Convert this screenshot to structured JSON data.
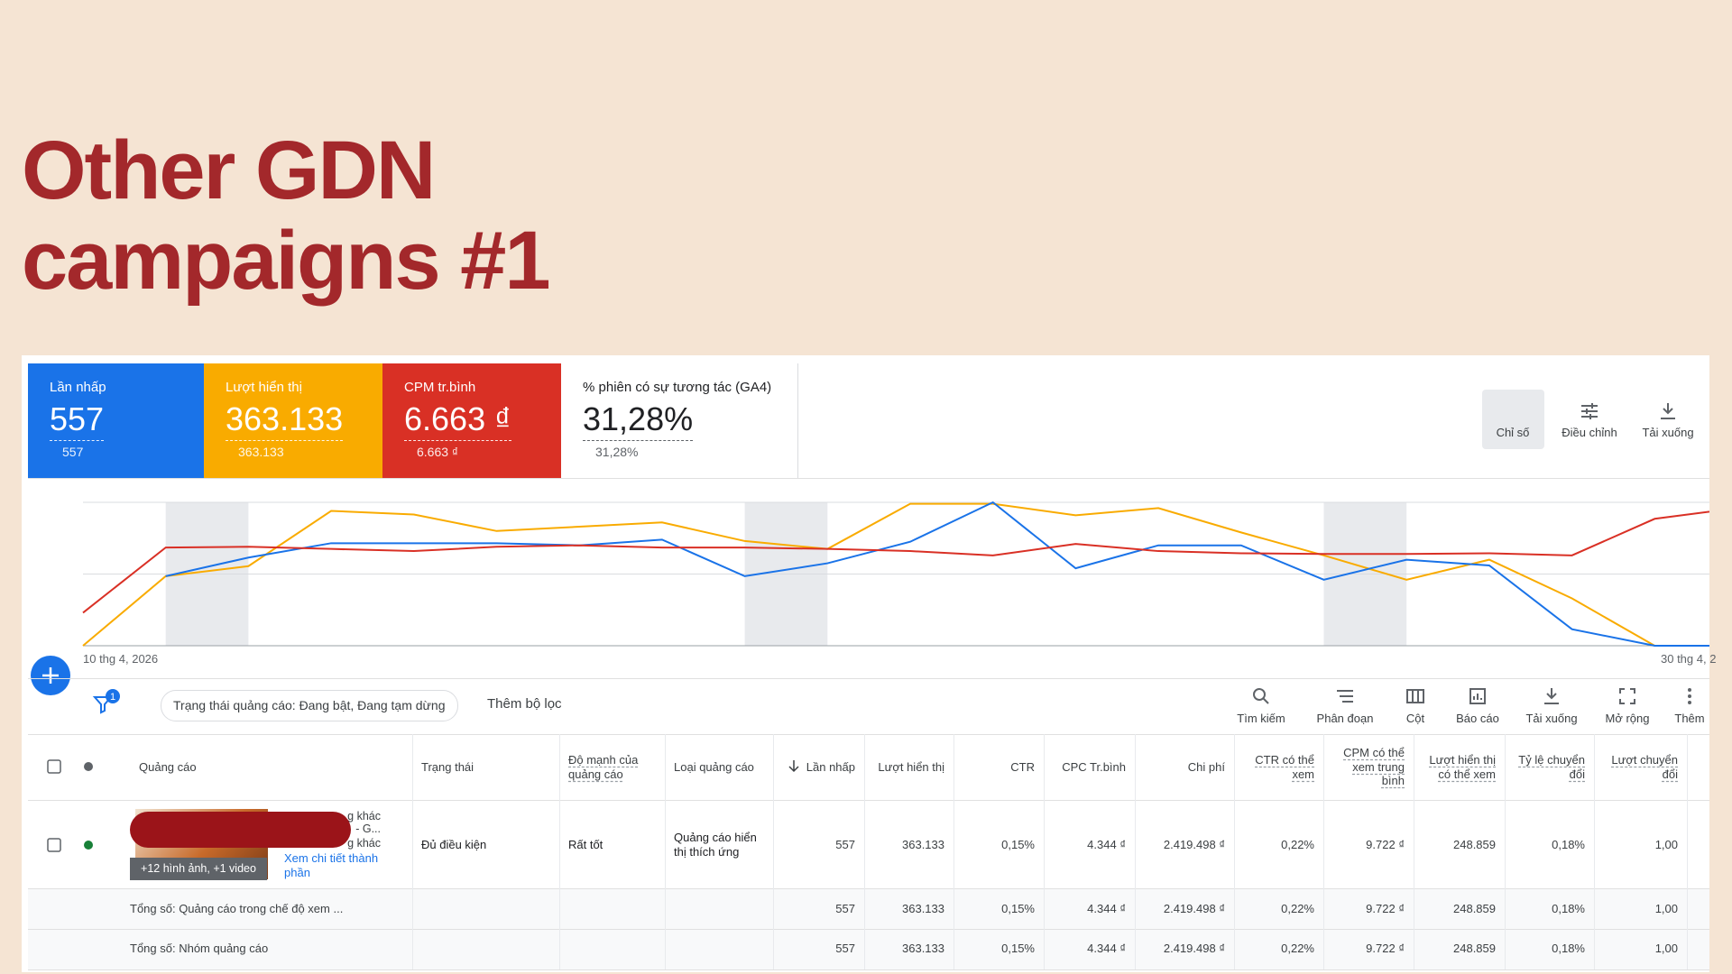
{
  "slide": {
    "title_lines": [
      "Other GDN",
      "campaigns #1"
    ]
  },
  "metrics": [
    {
      "label": "Lần nhấp",
      "value": "557",
      "change": "557",
      "color": "#1a73e8"
    },
    {
      "label": "Lượt hiển thị",
      "value": "363.133",
      "change": "363.133",
      "color": "#f9ab00"
    },
    {
      "label": "CPM tr.bình",
      "value": "6.663 ₫",
      "change": "6.663 ₫",
      "color": "#d93025"
    },
    {
      "label": "% phiên có sự tương tác (GA4)",
      "value": "31,28%",
      "change": "31,28%",
      "color": "#ffffff"
    }
  ],
  "top_tools": [
    "Chỉ số",
    "Điều chỉnh",
    "Tải xuống"
  ],
  "chart_data": {
    "type": "line",
    "x_labels": [
      "10 thg 4, 2026",
      "30 thg 4, 2"
    ],
    "ylim": [
      0,
      2
    ],
    "yticks": [
      0,
      1,
      2
    ],
    "grid": true,
    "series": [
      {
        "color": "#f9ab00",
        "values": [
          0,
          0.97,
          1.11,
          1.88,
          1.83,
          1.6,
          1.66,
          1.72,
          1.46,
          1.35,
          1.98,
          1.98,
          1.82,
          1.92,
          1.58,
          1.26,
          0.92,
          1.2,
          0.66,
          0,
          0
        ]
      },
      {
        "color": "#1a73e8",
        "values": [
          null,
          0.97,
          1.23,
          1.43,
          1.43,
          1.43,
          1.4,
          1.48,
          0.97,
          1.15,
          1.45,
          2.0,
          1.08,
          1.4,
          1.4,
          0.92,
          1.2,
          1.12,
          0.23,
          0,
          0
        ]
      },
      {
        "color": "#d93025",
        "values": [
          0.46,
          1.37,
          1.38,
          1.35,
          1.32,
          1.38,
          1.4,
          1.37,
          1.37,
          1.35,
          1.32,
          1.26,
          1.42,
          1.32,
          1.29,
          1.28,
          1.28,
          1.29,
          1.26,
          1.77,
          1.92
        ]
      }
    ]
  },
  "filter": {
    "badge": "1",
    "chip": "Trạng thái quảng cáo: Đang bật, Đang tạm dừng",
    "add_filter": "Thêm bộ lọc"
  },
  "toolbar": [
    "Tìm kiếm",
    "Phân đoạn",
    "Cột",
    "Báo cáo",
    "Tải xuống",
    "Mở rộng",
    "Thêm"
  ],
  "table": {
    "columns": [
      "Quảng cáo",
      "Trạng thái",
      "Độ mạnh của quảng cáo",
      "Loại quảng cáo",
      "Lần nhấp",
      "Lượt hiển thị",
      "CTR",
      "CPC Tr.bình",
      "Chi phí",
      "CTR có thể xem",
      "CPM có thể xem trung bình",
      "Lượt hiển thị có thể xem",
      "Tỷ lệ chuyển đổi",
      "Lượt chuyển đổi"
    ],
    "ad_row": {
      "fragments": [
        "g khác",
        "- G...",
        "g khác"
      ],
      "more": "+12 hình ảnh, +1 video",
      "link": "Xem chi tiết thành phần",
      "status": "Đủ điều kiện",
      "strength": "Rất tốt",
      "ad_type": "Quảng cáo hiển thị thích ứng",
      "metrics": [
        "557",
        "363.133",
        "0,15%",
        "4.344 ₫",
        "2.419.498 ₫",
        "0,22%",
        "9.722 ₫",
        "248.859",
        "0,18%",
        "1,00"
      ]
    },
    "totals": [
      {
        "label": "Tổng số: Quảng cáo trong chế độ xem ...",
        "metrics": [
          "557",
          "363.133",
          "0,15%",
          "4.344 ₫",
          "2.419.498 ₫",
          "0,22%",
          "9.722 ₫",
          "248.859",
          "0,18%",
          "1,00"
        ]
      },
      {
        "label": "Tổng số: Nhóm quảng cáo",
        "metrics": [
          "557",
          "363.133",
          "0,15%",
          "4.344 ₫",
          "2.419.498 ₫",
          "0,22%",
          "9.722 ₫",
          "248.859",
          "0,18%",
          "1,00"
        ]
      }
    ]
  }
}
